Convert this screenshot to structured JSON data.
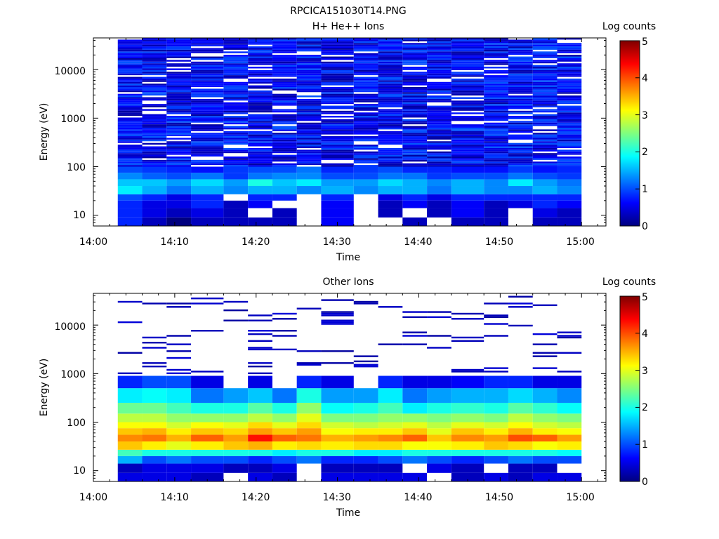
{
  "figure_title": "RPCICA151030T14.PNG",
  "colorbar_stops": [
    "#00007f",
    "#0000ff",
    "#007fff",
    "#00ffff",
    "#7fff7f",
    "#ffff00",
    "#ff7f00",
    "#ff0000",
    "#7f0000"
  ],
  "chart_data": [
    {
      "type": "heatmap",
      "title": "H+ He++ Ions",
      "xlabel": "Time",
      "ylabel": "Energy (eV)",
      "colorbar_label": "Log counts",
      "colorbar_ticks": [
        "0",
        "1",
        "2",
        "3",
        "4",
        "5"
      ],
      "clim": [
        0,
        5
      ],
      "xlim": [
        "14:00",
        "15:03"
      ],
      "xticks": [
        "14:00",
        "14:10",
        "14:20",
        "14:30",
        "14:40",
        "14:50",
        "15:00"
      ],
      "ylim": [
        6,
        45000
      ],
      "yscale": "log",
      "yticks": [
        "10",
        "100",
        "1000",
        "10000"
      ],
      "time_bins": [
        "14:03-14:06",
        "14:06-14:09",
        "14:09-14:12",
        "14:12-14:16",
        "14:16-14:19",
        "14:19-14:22",
        "14:22-14:25",
        "14:25-14:28",
        "14:28-14:32",
        "14:32-14:35",
        "14:35-14:38",
        "14:38-14:41",
        "14:41-14:44",
        "14:44-14:48",
        "14:48-14:51",
        "14:51-14:54",
        "14:54-14:57",
        "14:57-15:00"
      ],
      "energy_bands_eV": [
        {
          "range": [
            6,
            9
          ],
          "log_counts": [
            0.8,
            0.3,
            0,
            0.3,
            0.3,
            0.3,
            0.3,
            null,
            0.6,
            null,
            null,
            0.3,
            null,
            0.3,
            0.3,
            null,
            0.3,
            0.3
          ]
        },
        {
          "range": [
            9,
            14
          ],
          "log_counts": [
            0.8,
            0.5,
            0.3,
            0.5,
            0.3,
            null,
            0.3,
            null,
            0.6,
            null,
            0.3,
            null,
            0.3,
            0.6,
            0.3,
            null,
            0.5,
            0.3
          ]
        },
        {
          "range": [
            14,
            20
          ],
          "log_counts": [
            0.8,
            0.5,
            0.5,
            0.8,
            0.3,
            0.6,
            null,
            null,
            0.6,
            null,
            0.3,
            0.6,
            0.3,
            0.6,
            0.3,
            0.5,
            0.8,
            0.6
          ]
        },
        {
          "range": [
            20,
            27
          ],
          "log_counts": [
            1.0,
            0.8,
            0.5,
            0.8,
            null,
            0.8,
            0.8,
            null,
            0.8,
            null,
            0.5,
            0.8,
            0.5,
            0.8,
            0.8,
            0.8,
            0.8,
            0.8
          ]
        },
        {
          "range": [
            27,
            40
          ],
          "log_counts": [
            1.8,
            1.5,
            1.2,
            1.5,
            1.3,
            1.5,
            1.5,
            1.3,
            1.5,
            1.3,
            1.5,
            1.5,
            1.2,
            1.5,
            1.3,
            1.3,
            1.5,
            1.3
          ]
        },
        {
          "range": [
            40,
            55
          ],
          "log_counts": [
            1.6,
            1.6,
            1.4,
            1.7,
            1.4,
            2.0,
            1.6,
            1.8,
            1.4,
            1.4,
            1.7,
            1.5,
            1.3,
            1.5,
            1.3,
            1.8,
            1.4,
            1.2
          ]
        },
        {
          "range": [
            55,
            75
          ],
          "log_counts": [
            1.3,
            1.1,
            1.0,
            1.2,
            0.9,
            1.2,
            1.3,
            1.3,
            1.0,
            1.0,
            1.2,
            1.2,
            0.9,
            1.0,
            1.0,
            1.2,
            1.0,
            0.9
          ]
        },
        {
          "range": [
            75,
            100
          ],
          "log_counts": [
            1.0,
            0.9,
            0.8,
            0.7,
            0.9,
            1.0,
            1.0,
            1.2,
            0.8,
            0.9,
            1.0,
            0.8,
            0.8,
            0.7,
            0.7,
            0.9,
            0.7,
            0.8
          ]
        },
        {
          "range": [
            100,
            45000
          ],
          "log_counts_typical": 0.6,
          "note": "sparse low-count bins"
        }
      ]
    },
    {
      "type": "heatmap",
      "title": "Other Ions",
      "xlabel": "Time",
      "ylabel": "Energy (eV)",
      "colorbar_label": "Log counts",
      "colorbar_ticks": [
        "0",
        "1",
        "2",
        "3",
        "4",
        "5"
      ],
      "clim": [
        0,
        5
      ],
      "xlim": [
        "14:00",
        "15:03"
      ],
      "xticks": [
        "14:00",
        "14:10",
        "14:20",
        "14:30",
        "14:40",
        "14:50",
        "15:00"
      ],
      "ylim": [
        6,
        45000
      ],
      "yscale": "log",
      "yticks": [
        "10",
        "100",
        "1000",
        "10000"
      ],
      "time_bins": [
        "14:03-14:06",
        "14:06-14:09",
        "14:09-14:12",
        "14:12-14:16",
        "14:16-14:19",
        "14:19-14:22",
        "14:22-14:25",
        "14:25-14:28",
        "14:28-14:32",
        "14:32-14:35",
        "14:35-14:38",
        "14:38-14:41",
        "14:41-14:44",
        "14:44-14:48",
        "14:48-14:51",
        "14:51-14:54",
        "14:54-14:57",
        "14:57-15:00"
      ],
      "energy_bands_eV": [
        {
          "range": [
            6,
            9
          ],
          "log_counts": [
            0.5,
            0.5,
            0.5,
            0.3,
            null,
            0.5,
            0.3,
            null,
            0.5,
            0.5,
            0.5,
            0.5,
            null,
            0.3,
            0.5,
            0.3,
            0.5,
            0.5
          ]
        },
        {
          "range": [
            9,
            14
          ],
          "log_counts": [
            0.3,
            0.5,
            0.5,
            0.5,
            0.3,
            0.3,
            0.5,
            null,
            0.3,
            0.3,
            0.3,
            null,
            0.5,
            0.3,
            null,
            0.3,
            0.3,
            null
          ]
        },
        {
          "range": [
            14,
            20
          ],
          "log_counts": [
            1.5,
            1.0,
            1.2,
            1.0,
            1.0,
            0.8,
            1.0,
            1.2,
            0.8,
            0.8,
            1.0,
            1.2,
            1.0,
            0.8,
            1.0,
            1.2,
            1.0,
            1.0
          ]
        },
        {
          "range": [
            20,
            27
          ],
          "log_counts": [
            2.2,
            2.0,
            2.0,
            2.0,
            2.0,
            2.0,
            1.8,
            2.0,
            2.0,
            1.8,
            1.8,
            2.0,
            2.0,
            2.0,
            2.0,
            2.0,
            2.0,
            1.9
          ]
        },
        {
          "range": [
            27,
            40
          ],
          "log_counts": [
            3.4,
            3.2,
            3.0,
            3.2,
            3.4,
            3.5,
            3.2,
            3.3,
            3.2,
            3.3,
            3.3,
            3.1,
            3.1,
            3.2,
            3.4,
            3.3,
            3.1,
            3.2
          ]
        },
        {
          "range": [
            40,
            55
          ],
          "log_counts": [
            3.7,
            3.8,
            3.5,
            3.9,
            3.6,
            4.3,
            3.9,
            3.8,
            3.5,
            3.6,
            3.7,
            3.9,
            3.4,
            3.7,
            3.6,
            4.0,
            3.9,
            3.6
          ]
        },
        {
          "range": [
            55,
            75
          ],
          "log_counts": [
            3.4,
            3.5,
            3.2,
            3.4,
            3.3,
            3.6,
            3.4,
            3.6,
            3.1,
            3.2,
            3.2,
            3.4,
            3.0,
            3.4,
            3.2,
            3.5,
            3.2,
            3.1
          ]
        },
        {
          "range": [
            75,
            100
          ],
          "log_counts": [
            3.1,
            3.1,
            2.9,
            3.1,
            3.0,
            3.3,
            3.0,
            3.3,
            2.9,
            2.8,
            2.9,
            3.0,
            2.8,
            3.0,
            2.9,
            3.1,
            2.9,
            2.8
          ]
        },
        {
          "range": [
            100,
            150
          ],
          "log_counts": [
            2.8,
            2.8,
            2.6,
            2.6,
            2.6,
            2.8,
            2.6,
            3.0,
            2.5,
            2.5,
            2.6,
            2.6,
            2.5,
            2.6,
            2.5,
            2.8,
            2.6,
            2.5
          ]
        },
        {
          "range": [
            150,
            250
          ],
          "log_counts": [
            2.4,
            2.4,
            2.2,
            2.0,
            2.0,
            2.3,
            2.0,
            2.6,
            1.9,
            2.0,
            2.2,
            1.8,
            2.0,
            2.1,
            2.0,
            2.3,
            2.1,
            1.9
          ]
        },
        {
          "range": [
            250,
            500
          ],
          "log_counts": [
            1.8,
            1.9,
            1.8,
            1.2,
            1.4,
            1.6,
            1.2,
            2.0,
            1.4,
            1.4,
            1.8,
            1.2,
            1.4,
            1.5,
            1.5,
            1.7,
            1.5,
            1.3
          ]
        },
        {
          "range": [
            500,
            900
          ],
          "log_counts": [
            0.8,
            1.0,
            1.0,
            0.5,
            null,
            0.5,
            null,
            0.8,
            0.5,
            null,
            0.8,
            0.5,
            0.5,
            0.6,
            0.8,
            0.8,
            0.5,
            0.5
          ]
        },
        {
          "range": [
            900,
            40000
          ],
          "log_counts_typical": 0.3,
          "note": "isolated single counts"
        }
      ]
    }
  ]
}
